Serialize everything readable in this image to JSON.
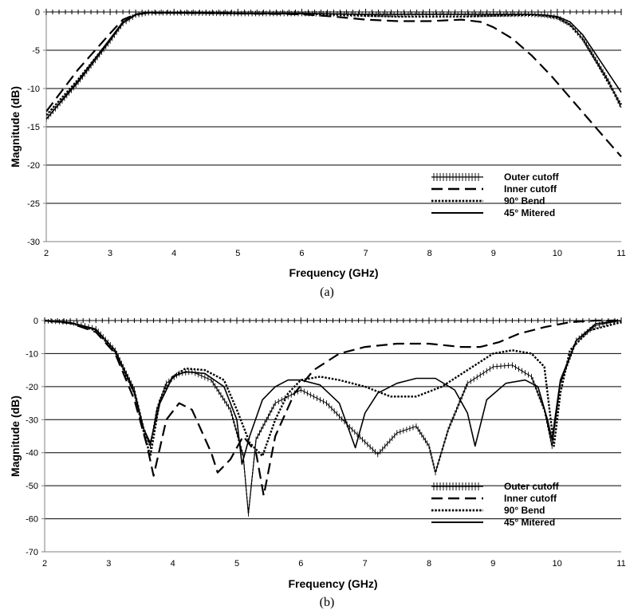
{
  "chart_data": [
    {
      "panel": "a",
      "type": "line",
      "caption": "(a)",
      "xlabel": "Frequency (GHz)",
      "ylabel": "Magnitude (dB)",
      "xlim": [
        2,
        11
      ],
      "ylim": [
        -30,
        0
      ],
      "xticks": [
        2,
        3,
        4,
        5,
        6,
        7,
        8,
        9,
        10,
        11
      ],
      "yticks": [
        0,
        -5,
        -10,
        -15,
        -20,
        -25,
        -30
      ],
      "grid": "horizontal",
      "legend_position": "bottom-right",
      "series": [
        {
          "name": "Outer cutoff",
          "style": "tick-marks",
          "x": [
            2.0,
            2.5,
            3.0,
            3.2,
            3.4,
            3.6,
            4,
            5,
            6,
            7,
            8,
            9,
            9.6,
            9.8,
            10.0,
            10.2,
            10.4,
            10.6,
            10.8,
            11.0
          ],
          "y": [
            -14.0,
            -9.2,
            -3.8,
            -1.5,
            -0.4,
            -0.1,
            -0.1,
            -0.2,
            -0.2,
            -0.3,
            -0.3,
            -0.3,
            -0.3,
            -0.4,
            -0.7,
            -1.6,
            -3.5,
            -6.2,
            -9.0,
            -12.5
          ]
        },
        {
          "name": "Inner cutoff",
          "style": "dashed",
          "x": [
            2.0,
            2.5,
            3.0,
            3.2,
            3.4,
            3.6,
            4,
            5,
            6,
            6.5,
            7,
            7.5,
            8,
            8.5,
            8.8,
            9.0,
            9.3,
            9.6,
            9.9,
            10.2,
            10.5,
            10.8,
            11.0
          ],
          "y": [
            -13.0,
            -7.5,
            -2.8,
            -1.0,
            -0.3,
            -0.1,
            -0.1,
            -0.2,
            -0.3,
            -0.6,
            -1.0,
            -1.2,
            -1.2,
            -1.0,
            -1.3,
            -2.0,
            -3.5,
            -5.7,
            -8.3,
            -11.2,
            -14.1,
            -17.0,
            -18.9
          ]
        },
        {
          "name": "90° Bend",
          "style": "dotted",
          "x": [
            2.0,
            2.5,
            3.0,
            3.2,
            3.4,
            3.6,
            4,
            5,
            6,
            7,
            7.5,
            8,
            8.5,
            9,
            9.6,
            9.8,
            10.0,
            10.2,
            10.4,
            10.6,
            10.8,
            11.0
          ],
          "y": [
            -13.5,
            -8.8,
            -3.6,
            -1.4,
            -0.4,
            -0.1,
            -0.1,
            -0.2,
            -0.2,
            -0.5,
            -0.6,
            -0.6,
            -0.6,
            -0.5,
            -0.4,
            -0.5,
            -0.8,
            -1.7,
            -3.6,
            -6.4,
            -9.3,
            -12.1
          ]
        },
        {
          "name": "45° Mitered",
          "style": "solid",
          "x": [
            2.0,
            2.5,
            3.0,
            3.2,
            3.4,
            3.6,
            4,
            5,
            6,
            7,
            8,
            9,
            9.6,
            9.8,
            10.0,
            10.2,
            10.4,
            10.6,
            10.8,
            11.0
          ],
          "y": [
            -14.0,
            -9.0,
            -3.5,
            -1.3,
            -0.3,
            -0.1,
            -0.1,
            -0.2,
            -0.2,
            -0.3,
            -0.3,
            -0.3,
            -0.3,
            -0.4,
            -0.6,
            -1.3,
            -3.0,
            -5.5,
            -8.0,
            -10.5
          ]
        }
      ]
    },
    {
      "panel": "b",
      "type": "line",
      "caption": "(b)",
      "xlabel": "Frequency (GHz)",
      "ylabel": "Magnitude (dB)",
      "xlim": [
        2,
        11
      ],
      "ylim": [
        -70,
        0
      ],
      "xticks": [
        2,
        3,
        4,
        5,
        6,
        7,
        8,
        9,
        10,
        11
      ],
      "yticks": [
        0,
        -10,
        -20,
        -30,
        -40,
        -50,
        -60,
        -70
      ],
      "grid": "horizontal",
      "legend_position": "bottom-right",
      "series": [
        {
          "name": "Outer cutoff",
          "style": "tick-marks",
          "x": [
            2.0,
            2.4,
            2.8,
            3.1,
            3.4,
            3.55,
            3.65,
            3.75,
            3.9,
            4.1,
            4.3,
            4.6,
            4.9,
            5.1,
            5.18,
            5.3,
            5.6,
            6.0,
            6.4,
            6.8,
            7.2,
            7.5,
            7.8,
            8.0,
            8.1,
            8.3,
            8.6,
            9.0,
            9.3,
            9.6,
            9.8,
            9.92,
            10.05,
            10.3,
            10.6,
            11.0
          ],
          "y": [
            0,
            -0.5,
            -2.5,
            -9,
            -21,
            -33,
            -38,
            -27,
            -19,
            -16,
            -15.5,
            -18,
            -27,
            -41,
            -58.5,
            -36,
            -25,
            -21,
            -25,
            -33,
            -40.5,
            -34,
            -32,
            -38,
            -46,
            -33,
            -19,
            -14,
            -13.5,
            -17,
            -27,
            -38,
            -19,
            -6,
            -1.5,
            0
          ]
        },
        {
          "name": "Inner cutoff",
          "style": "dashed",
          "x": [
            2.0,
            2.4,
            2.8,
            3.1,
            3.4,
            3.6,
            3.7,
            3.9,
            4.1,
            4.3,
            4.6,
            4.7,
            4.9,
            5.1,
            5.3,
            5.42,
            5.6,
            5.9,
            6.2,
            6.6,
            7.0,
            7.5,
            8.0,
            8.5,
            8.8,
            9.1,
            9.4,
            9.8,
            10.2,
            10.6,
            11.0
          ],
          "y": [
            0,
            -0.8,
            -3.5,
            -10,
            -24,
            -38,
            -47,
            -30,
            -25,
            -27,
            -40,
            -46,
            -42,
            -35,
            -40,
            -53,
            -35,
            -22,
            -15,
            -10,
            -8,
            -7,
            -7,
            -8,
            -8,
            -6.5,
            -4,
            -2,
            -0.5,
            0,
            0
          ]
        },
        {
          "name": "90° Bend",
          "style": "dotted",
          "x": [
            2.0,
            2.4,
            2.8,
            3.1,
            3.4,
            3.55,
            3.65,
            3.8,
            4.0,
            4.2,
            4.5,
            4.8,
            5.0,
            5.2,
            5.4,
            5.6,
            5.8,
            6.0,
            6.3,
            6.6,
            7.0,
            7.4,
            7.8,
            8.2,
            8.6,
            9.0,
            9.3,
            9.6,
            9.8,
            9.95,
            10.05,
            10.2,
            10.5,
            11.0
          ],
          "y": [
            0,
            -0.7,
            -3,
            -9.5,
            -22,
            -34,
            -41,
            -24,
            -17,
            -14.5,
            -15,
            -18,
            -27,
            -37,
            -41,
            -30,
            -22,
            -18,
            -17,
            -18,
            -20,
            -23,
            -23,
            -20,
            -15,
            -10,
            -9,
            -10,
            -14,
            -38,
            -22,
            -9,
            -3,
            -0.5
          ]
        },
        {
          "name": "45° Mitered",
          "style": "solid",
          "x": [
            2.0,
            2.4,
            2.8,
            3.1,
            3.4,
            3.55,
            3.65,
            3.8,
            4.0,
            4.2,
            4.5,
            4.8,
            5.0,
            5.08,
            5.2,
            5.4,
            5.6,
            5.8,
            6.0,
            6.3,
            6.6,
            6.85,
            7.0,
            7.2,
            7.5,
            7.8,
            8.1,
            8.4,
            8.6,
            8.72,
            8.9,
            9.2,
            9.5,
            9.7,
            9.85,
            9.92,
            10.05,
            10.3,
            10.6,
            11.0
          ],
          "y": [
            0,
            -0.6,
            -2.8,
            -9,
            -22,
            -33,
            -37,
            -25,
            -17,
            -15.5,
            -16,
            -20,
            -30,
            -43.5,
            -35,
            -24,
            -20,
            -18,
            -18,
            -19.5,
            -25,
            -38.5,
            -28,
            -22,
            -19,
            -17.5,
            -17.5,
            -21,
            -28,
            -38,
            -24,
            -19,
            -18,
            -20,
            -30,
            -36,
            -18,
            -6,
            -1,
            0
          ]
        }
      ]
    }
  ]
}
